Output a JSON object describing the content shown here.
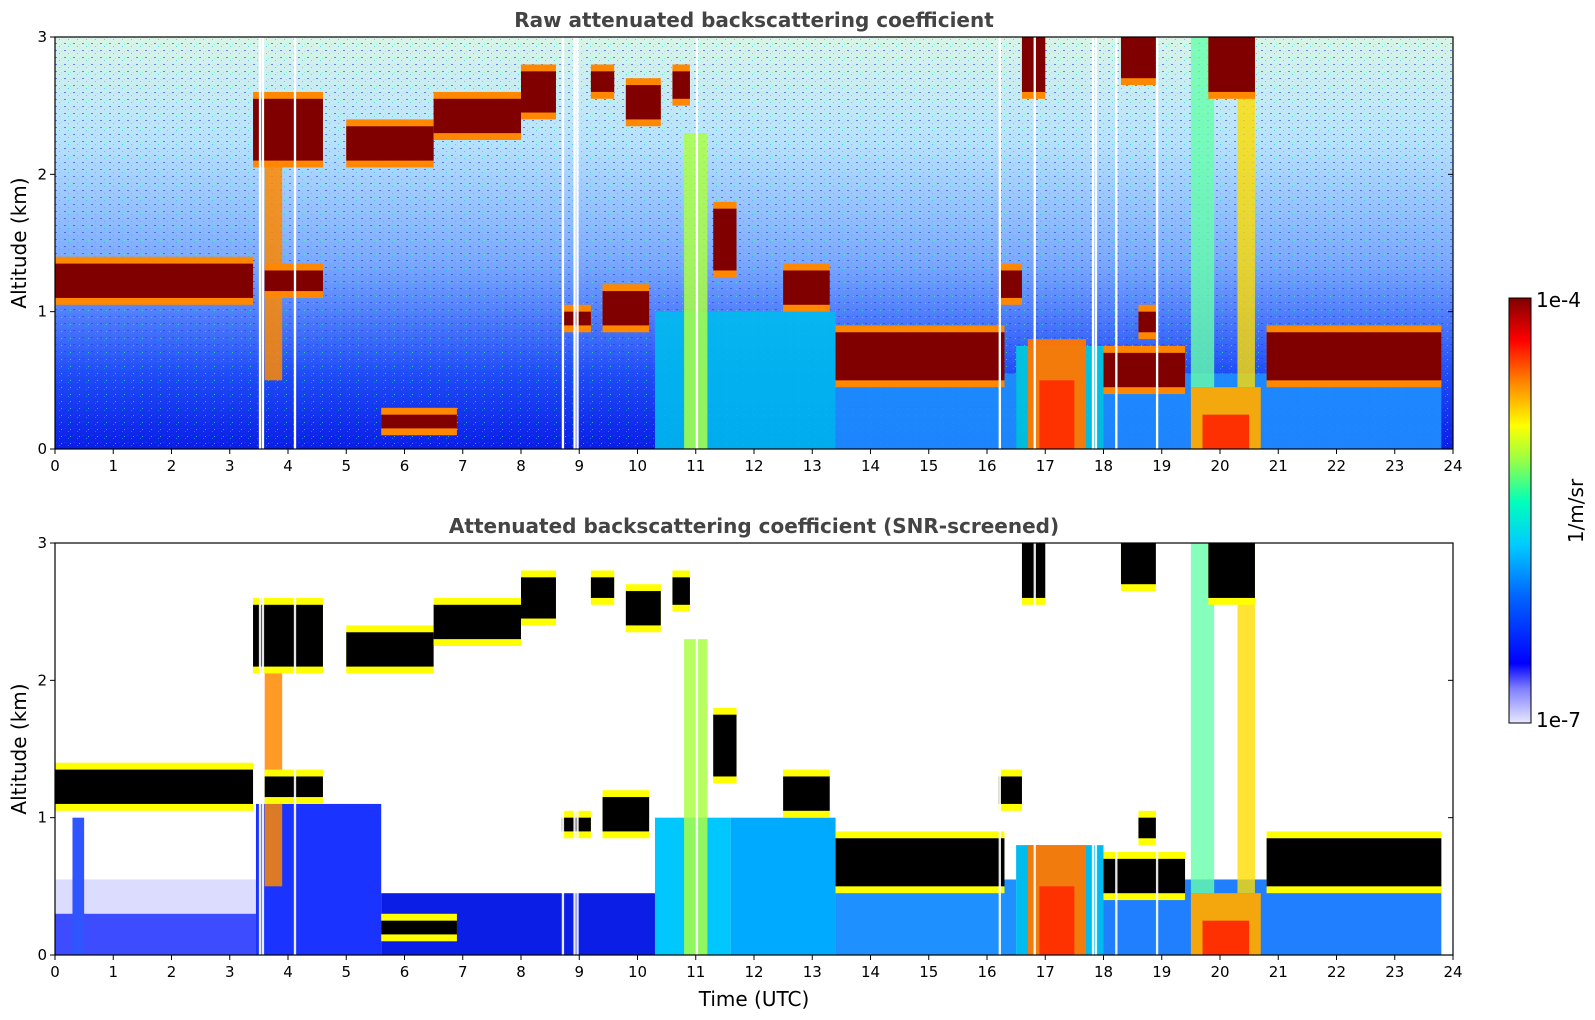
{
  "chart_data": [
    {
      "type": "heatmap",
      "title": "Raw attenuated backscattering coefficient",
      "xlabel": "",
      "ylabel": "Altitude (km)",
      "xlim": [
        0,
        24
      ],
      "ylim": [
        0,
        3
      ],
      "xticks": [
        "0",
        "1",
        "2",
        "3",
        "4",
        "5",
        "6",
        "7",
        "8",
        "9",
        "10",
        "11",
        "12",
        "13",
        "14",
        "15",
        "16",
        "17",
        "18",
        "19",
        "20",
        "21",
        "22",
        "23",
        "24"
      ],
      "yticks": [
        "0",
        "1",
        "2",
        "3"
      ],
      "layers": [
        {
          "x": [
            0,
            3.4
          ],
          "y": [
            1.1,
            1.35
          ],
          "level": "high"
        },
        {
          "x": [
            3.4,
            4.6
          ],
          "y": [
            2.1,
            2.55
          ],
          "level": "high"
        },
        {
          "x": [
            5.0,
            8.6
          ],
          "y": [
            2.1,
            2.75
          ],
          "level": "high"
        },
        {
          "x": [
            9.2,
            10.4
          ],
          "y": [
            2.4,
            2.7
          ],
          "level": "high"
        },
        {
          "x": [
            13.4,
            16.3
          ],
          "y": [
            0.5,
            0.9
          ],
          "level": "high"
        },
        {
          "x": [
            20.8,
            23.8
          ],
          "y": [
            0.5,
            0.85
          ],
          "level": "high"
        },
        {
          "x": [
            6.0,
            7.2
          ],
          "y": [
            0.15,
            0.25
          ],
          "level": "high"
        }
      ]
    },
    {
      "type": "heatmap",
      "title": "Attenuated backscattering coefficient (SNR-screened)",
      "xlabel": "Time (UTC)",
      "ylabel": "Altitude (km)",
      "xlim": [
        0,
        24
      ],
      "ylim": [
        0,
        3
      ],
      "xticks": [
        "0",
        "1",
        "2",
        "3",
        "4",
        "5",
        "6",
        "7",
        "8",
        "9",
        "10",
        "11",
        "12",
        "13",
        "14",
        "15",
        "16",
        "17",
        "18",
        "19",
        "20",
        "21",
        "22",
        "23",
        "24"
      ],
      "yticks": [
        "0",
        "1",
        "2",
        "3"
      ]
    }
  ],
  "colorbar": {
    "label": "1/m/sr",
    "max_label": "1e-4",
    "min_label": "1e-7",
    "scale": "log",
    "colormap": [
      "#e8e8ff",
      "#0000ff",
      "#00aaff",
      "#00ffcc",
      "#aaff55",
      "#ffff00",
      "#ff8800",
      "#ff0000",
      "#800000"
    ]
  }
}
